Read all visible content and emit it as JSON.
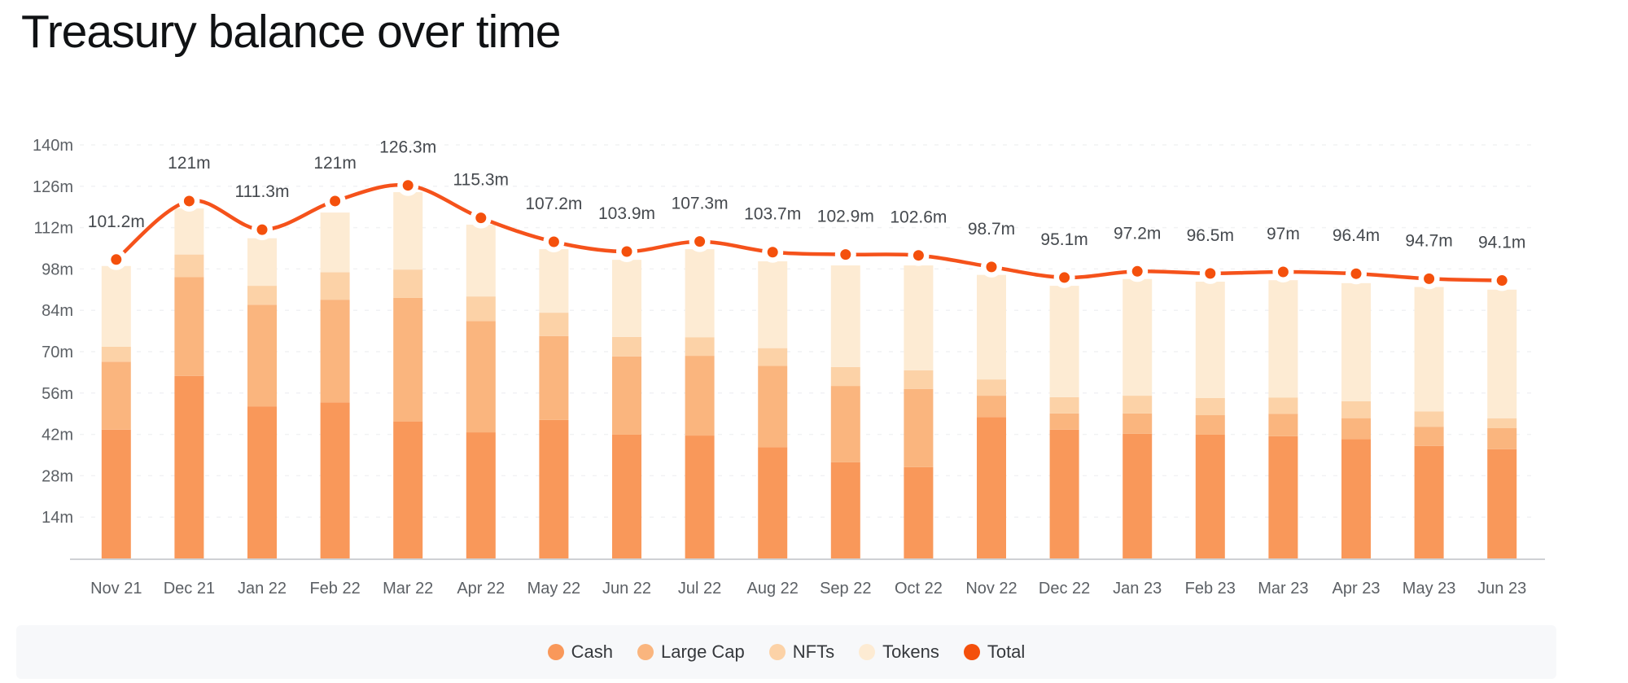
{
  "title": "Treasury balance over time",
  "chart_data": {
    "type": "bar",
    "stacked": true,
    "overlay": "line",
    "title": "Treasury balance over time",
    "xlabel": "",
    "ylabel": "",
    "ylim": [
      0,
      147
    ],
    "grid": true,
    "legend_position": "bottom",
    "categories": [
      "Nov 21",
      "Dec 21",
      "Jan 22",
      "Feb 22",
      "Mar 22",
      "Apr 22",
      "May 22",
      "Jun 22",
      "Jul 22",
      "Aug 22",
      "Sep 22",
      "Oct 22",
      "Nov 22",
      "Dec 22",
      "Jan 23",
      "Feb 23",
      "Mar 23",
      "Apr 23",
      "May 23",
      "Jun 23"
    ],
    "ytick_values": [
      14,
      28,
      42,
      56,
      70,
      84,
      98,
      112,
      126,
      140
    ],
    "ytick_labels": [
      "14m",
      "28m",
      "42m",
      "56m",
      "70m",
      "84m",
      "98m",
      "112m",
      "126m",
      "140m"
    ],
    "series": [
      {
        "name": "Cash",
        "color": "#F9985A",
        "values": [
          43.6,
          61.8,
          51.5,
          52.8,
          46.4,
          42.7,
          46.9,
          41.9,
          41.6,
          37.7,
          32.6,
          30.9,
          47.8,
          43.6,
          42.2,
          41.9,
          41.4,
          40.4,
          38.1,
          37.0
        ]
      },
      {
        "name": "Large Cap",
        "color": "#FAB57E",
        "values": [
          23.0,
          33.5,
          34.4,
          34.8,
          41.8,
          37.7,
          28.4,
          26.5,
          27.0,
          27.5,
          25.8,
          26.5,
          7.3,
          5.5,
          6.9,
          6.6,
          7.6,
          7.1,
          6.5,
          7.1
        ]
      },
      {
        "name": "NFTs",
        "color": "#FCD2A7",
        "values": [
          5.1,
          7.6,
          6.4,
          9.3,
          9.6,
          8.3,
          7.9,
          6.6,
          6.3,
          6.0,
          6.4,
          6.3,
          5.5,
          5.5,
          6.0,
          5.8,
          5.5,
          5.7,
          5.2,
          3.3
        ]
      },
      {
        "name": "Tokens",
        "color": "#FDEBD3",
        "values": [
          27.3,
          15.6,
          16.1,
          20.2,
          26.2,
          24.3,
          21.5,
          26.1,
          29.8,
          29.4,
          34.4,
          35.5,
          35.4,
          37.7,
          39.5,
          39.4,
          39.7,
          40.0,
          42.1,
          43.6
        ]
      }
    ],
    "line_series": {
      "name": "Total",
      "color": "#F5521B",
      "dot_color": "#F4500C",
      "values": [
        101.2,
        121,
        111.3,
        121,
        126.3,
        115.3,
        107.2,
        103.9,
        107.3,
        103.7,
        102.9,
        102.6,
        98.7,
        95.1,
        97.2,
        96.5,
        97,
        96.4,
        94.7,
        94.1
      ],
      "labels": [
        "101.2m",
        "121m",
        "111.3m",
        "121m",
        "126.3m",
        "115.3m",
        "107.2m",
        "103.9m",
        "107.3m",
        "103.7m",
        "102.9m",
        "102.6m",
        "98.7m",
        "95.1m",
        "97.2m",
        "96.5m",
        "97m",
        "96.4m",
        "94.7m",
        "94.1m"
      ]
    }
  },
  "legend": {
    "items": [
      {
        "label": "Cash",
        "color": "#F9985A"
      },
      {
        "label": "Large Cap",
        "color": "#FAB57E"
      },
      {
        "label": "NFTs",
        "color": "#FCD2A7"
      },
      {
        "label": "Tokens",
        "color": "#FDEBD3"
      },
      {
        "label": "Total",
        "color": "#F4500C"
      }
    ]
  }
}
